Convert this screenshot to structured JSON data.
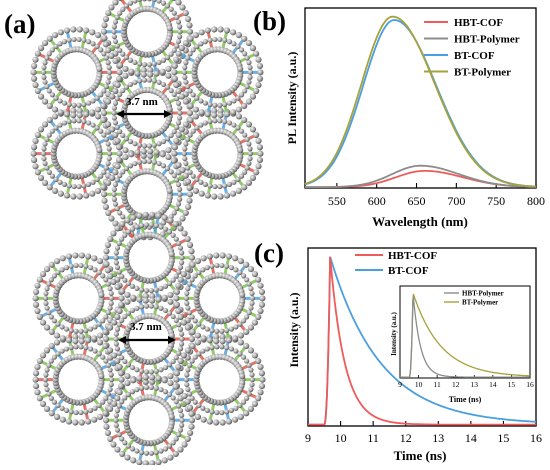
{
  "panels": {
    "a": {
      "label": "(a)",
      "pore_labels": [
        "3.7 nm",
        "3.7 nm"
      ]
    },
    "b": {
      "label": "(b)"
    },
    "c": {
      "label": "(c)"
    }
  },
  "colors": {
    "hbt_cof": "#f05a5a",
    "hbt_polymer": "#8c8c8c",
    "bt_cof": "#4a9fe0",
    "bt_polymer": "#a7a23a"
  },
  "chart_data": [
    {
      "type": "line",
      "panel": "b",
      "xlabel": "Wavelength (nm)",
      "ylabel": "PL Intensity (a.u.)",
      "xlim": [
        510,
        800
      ],
      "ylim": [
        0,
        1.05
      ],
      "xticks": [
        550,
        600,
        650,
        700,
        750,
        800
      ],
      "legend_position": "top-right",
      "series": [
        {
          "name": "HBT-COF",
          "peak": 660,
          "width": 42,
          "height": 0.095
        },
        {
          "name": "HBT-Polymer",
          "peak": 655,
          "width": 42,
          "height": 0.125
        },
        {
          "name": "BT-COF",
          "peak": 622,
          "width": 46,
          "height": 0.975
        },
        {
          "name": "BT-Polymer",
          "peak": 620,
          "width": 46,
          "height": 0.995
        }
      ]
    },
    {
      "type": "line",
      "panel": "c",
      "xlabel": "Time (ns)",
      "ylabel": "Intensity (a.u.)",
      "xlim": [
        9,
        16
      ],
      "ylim": [
        0,
        1.05
      ],
      "xticks": [
        9,
        10,
        11,
        12,
        13,
        14,
        15,
        16
      ],
      "legend_position": "top-left",
      "series": [
        {
          "name": "HBT-COF",
          "onset": 9.5,
          "peak_time": 9.68,
          "tau": 0.45
        },
        {
          "name": "BT-COF",
          "onset": 9.5,
          "peak_time": 9.68,
          "tau": 1.55
        }
      ],
      "inset": {
        "xlabel": "Time (ns)",
        "ylabel": "Intensity (a.u.)",
        "xlim": [
          9,
          16
        ],
        "xticks": [
          9,
          10,
          11,
          12,
          13,
          14,
          15,
          16
        ],
        "series": [
          {
            "name": "HBT-Polymer",
            "onset": 9.5,
            "peak_time": 9.7,
            "tau": 0.4
          },
          {
            "name": "BT-Polymer",
            "onset": 9.5,
            "peak_time": 9.7,
            "tau": 1.5
          }
        ]
      }
    }
  ]
}
